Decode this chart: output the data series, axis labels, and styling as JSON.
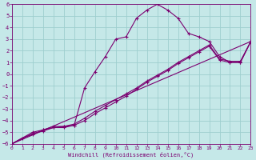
{
  "xlabel": "Windchill (Refroidissement éolien,°C)",
  "background_color": "#c5e8e8",
  "grid_color": "#9ecece",
  "line_color": "#7b0070",
  "xlim": [
    0,
    23
  ],
  "ylim": [
    -6,
    6
  ],
  "xticks": [
    0,
    1,
    2,
    3,
    4,
    5,
    6,
    7,
    8,
    9,
    10,
    11,
    12,
    13,
    14,
    15,
    16,
    17,
    18,
    19,
    20,
    21,
    22,
    23
  ],
  "yticks": [
    -6,
    -5,
    -4,
    -3,
    -2,
    -1,
    0,
    1,
    2,
    3,
    4,
    5,
    6
  ],
  "series": [
    {
      "x": [
        0,
        1,
        2,
        3,
        4,
        5,
        6,
        7,
        8,
        9,
        10,
        11,
        12,
        13,
        14,
        15,
        16,
        17,
        18,
        19,
        20,
        21,
        22,
        23
      ],
      "y": [
        -6.0,
        -5.5,
        -5.2,
        -4.8,
        -4.6,
        -4.5,
        -4.4,
        -1.2,
        0.2,
        1.5,
        3.0,
        3.2,
        4.8,
        5.5,
        6.0,
        5.5,
        4.8,
        3.5,
        3.2,
        2.8,
        1.5,
        1.0,
        1.0,
        2.8
      ]
    },
    {
      "x": [
        0,
        2,
        3,
        4,
        5,
        6,
        7,
        8,
        9,
        10,
        11,
        12,
        13,
        14,
        15,
        16,
        17,
        18,
        19,
        20,
        21,
        22,
        23
      ],
      "y": [
        -6.0,
        -5.0,
        -4.8,
        -4.5,
        -4.5,
        -4.3,
        -3.8,
        -3.2,
        -2.7,
        -2.2,
        -1.7,
        -1.2,
        -0.6,
        -0.1,
        0.4,
        1.0,
        1.5,
        2.0,
        2.5,
        1.3,
        1.1,
        1.1,
        2.8
      ]
    },
    {
      "x": [
        0,
        2,
        3,
        4,
        5,
        6,
        7,
        8,
        9,
        10,
        11,
        12,
        13,
        14,
        15,
        16,
        17,
        18,
        19,
        20,
        21,
        22,
        23
      ],
      "y": [
        -6.0,
        -5.1,
        -4.9,
        -4.6,
        -4.6,
        -4.4,
        -4.0,
        -3.4,
        -2.9,
        -2.4,
        -1.9,
        -1.3,
        -0.7,
        -0.2,
        0.3,
        0.9,
        1.4,
        1.9,
        2.4,
        1.2,
        1.0,
        1.0,
        2.8
      ]
    },
    {
      "x": [
        0,
        23
      ],
      "y": [
        -6.0,
        2.8
      ]
    }
  ]
}
